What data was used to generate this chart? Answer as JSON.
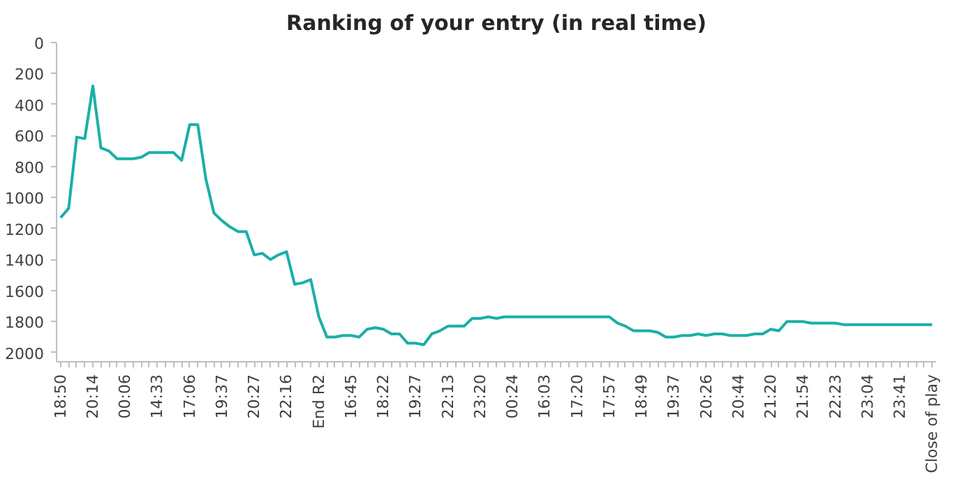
{
  "chart_data": {
    "type": "line",
    "title": "Ranking of your entry (in real time)",
    "categories": [
      "18:50",
      null,
      null,
      null,
      "20:14",
      null,
      null,
      null,
      "00:06",
      null,
      null,
      null,
      "14:33",
      null,
      null,
      null,
      "17:06",
      null,
      null,
      null,
      "19:37",
      null,
      null,
      null,
      "20:27",
      null,
      null,
      null,
      "22:16",
      null,
      null,
      null,
      "End R2",
      null,
      null,
      null,
      "16:45",
      null,
      null,
      null,
      "18:22",
      null,
      null,
      null,
      "19:27",
      null,
      null,
      null,
      "22:13",
      null,
      null,
      null,
      "23:20",
      null,
      null,
      null,
      "00:24",
      null,
      null,
      null,
      "16:03",
      null,
      null,
      null,
      "17:20",
      null,
      null,
      null,
      "17:57",
      null,
      null,
      null,
      "18:49",
      null,
      null,
      null,
      "19:37",
      null,
      null,
      null,
      "20:26",
      null,
      null,
      null,
      "20:44",
      null,
      null,
      null,
      "21:20",
      null,
      null,
      null,
      "21:54",
      null,
      null,
      null,
      "22:23",
      null,
      null,
      null,
      "23:04",
      null,
      null,
      null,
      "23:41",
      null,
      null,
      null,
      "Close of play"
    ],
    "series": [
      {
        "color": "#1aafa8",
        "values": [
          1130,
          1070,
          610,
          620,
          280,
          680,
          700,
          750,
          750,
          750,
          740,
          710,
          710,
          710,
          710,
          760,
          530,
          530,
          880,
          1100,
          1150,
          1190,
          1220,
          1220,
          1370,
          1360,
          1400,
          1370,
          1350,
          1560,
          1550,
          1530,
          1770,
          1900,
          1900,
          1890,
          1890,
          1900,
          1850,
          1840,
          1850,
          1880,
          1880,
          1940,
          1940,
          1950,
          1880,
          1860,
          1830,
          1830,
          1830,
          1780,
          1780,
          1770,
          1780,
          1770,
          1770,
          1770,
          1770,
          1770,
          1770,
          1770,
          1770,
          1770,
          1770,
          1770,
          1770,
          1770,
          1770,
          1810,
          1830,
          1860,
          1860,
          1860,
          1870,
          1900,
          1900,
          1890,
          1890,
          1880,
          1890,
          1880,
          1880,
          1890,
          1890,
          1890,
          1880,
          1880,
          1850,
          1860,
          1800,
          1800,
          1800,
          1810,
          1810,
          1810,
          1810,
          1820,
          1820,
          1820,
          1820,
          1820,
          1820,
          1820,
          1820,
          1820,
          1820,
          1820,
          1820
        ]
      }
    ],
    "ylim": [
      2060,
      0
    ],
    "yticks": [
      0,
      200,
      400,
      600,
      800,
      1000,
      1200,
      1400,
      1600,
      1800,
      2000
    ],
    "grid": false
  }
}
